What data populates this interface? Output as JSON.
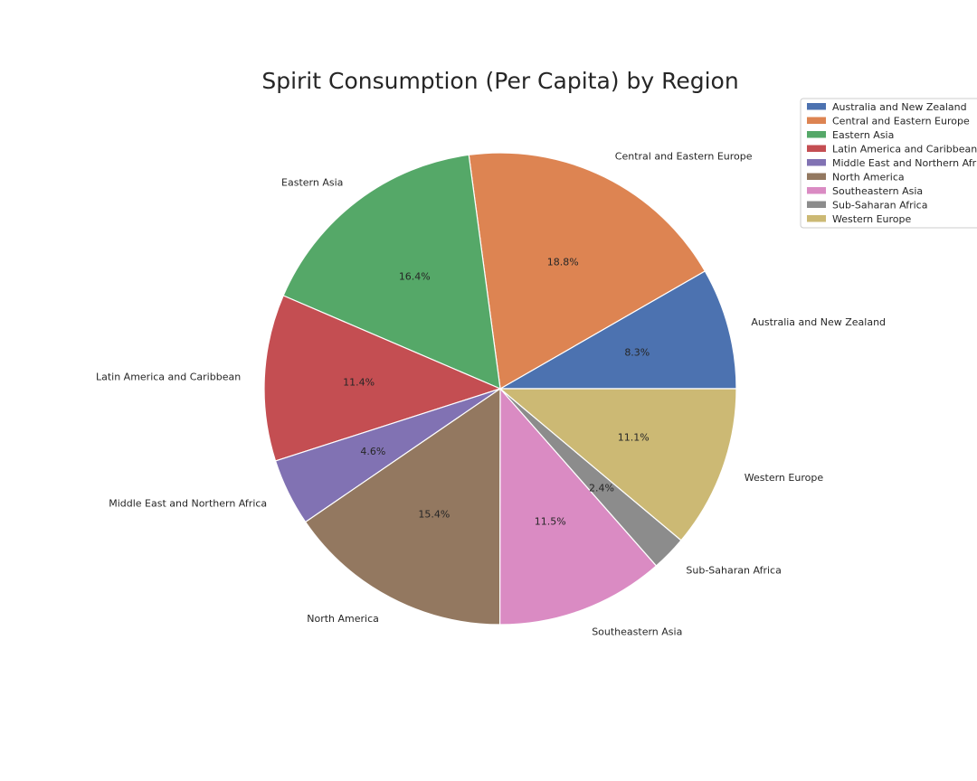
{
  "chart_data": {
    "type": "pie",
    "title": "Spirit Consumption (Per Capita) by Region",
    "categories": [
      "Australia and New Zealand",
      "Central and Eastern Europe",
      "Eastern Asia",
      "Latin America and Caribbean",
      "Middle East and Northern Africa",
      "North America",
      "Southeastern Asia",
      "Sub-Saharan Africa",
      "Western Europe"
    ],
    "values": [
      8.3,
      18.8,
      16.4,
      11.4,
      4.6,
      15.4,
      11.5,
      2.4,
      11.1
    ],
    "percent_labels": [
      "8.3%",
      "18.8%",
      "16.4%",
      "11.4%",
      "4.6%",
      "15.4%",
      "11.5%",
      "2.4%",
      "11.1%"
    ],
    "colors": [
      "#4c72b0",
      "#dd8452",
      "#55a868",
      "#c44e52",
      "#8172b3",
      "#937860",
      "#da8bc3",
      "#8c8c8c",
      "#ccb974"
    ],
    "start_angle_deg": 0,
    "direction": "counterclockwise",
    "legend_position": "top-right"
  }
}
